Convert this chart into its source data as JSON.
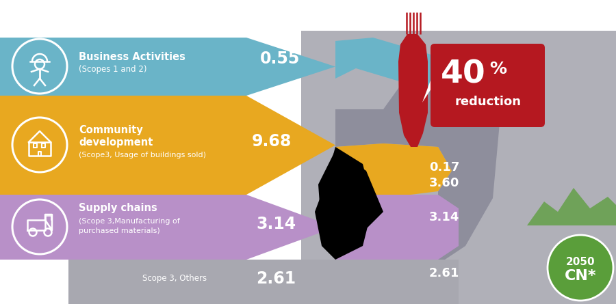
{
  "bg_color": "#ffffff",
  "blue": "#6ab4c8",
  "gold": "#e8a820",
  "purple": "#b890c8",
  "lgray": "#a8a8b0",
  "dgray": "#b0b0b8",
  "mgray": "#888898",
  "dark_red": "#b51820",
  "green": "#5a9e3a",
  "white": "#ffffff",
  "black": "#000000",
  "labels": {
    "band1_title": "Business Activities",
    "band1_sub": "(Scopes 1 and 2)",
    "band1_val": "0.55",
    "band2_title1": "Community",
    "band2_title2": "development",
    "band2_sub": "(Scope3, Usage of buildings sold)",
    "band2_val": "9.68",
    "band3_title": "Supply chains",
    "band3_sub1": "(Scope 3,Manufacturing of",
    "band3_sub2": "purchased materials)",
    "band3_val_l": "3.14",
    "band3_val_r": "3.14",
    "band4_title": "Scope 3, Others",
    "band4_val_l": "2.61",
    "band4_val_r": "2.61",
    "val_017": "0.17",
    "val_360": "3.60",
    "pct": "40",
    "pct_sym": "%",
    "red_txt": "reduction",
    "cn_line1": "2050",
    "cn_line2": "CN*"
  }
}
